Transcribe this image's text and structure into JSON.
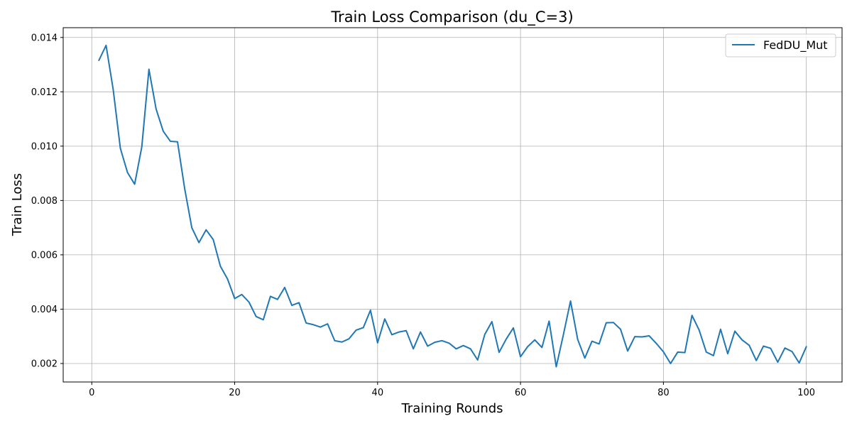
{
  "chart_data": {
    "type": "line",
    "title": "Train Loss Comparison (du_C=3)",
    "xlabel": "Training Rounds",
    "ylabel": "Train Loss",
    "xlim": [
      -4,
      105
    ],
    "ylim": [
      0.00132,
      0.01436
    ],
    "xticks": [
      0,
      20,
      40,
      60,
      80,
      100
    ],
    "xtick_labels": [
      "0",
      "20",
      "40",
      "60",
      "80",
      "100"
    ],
    "yticks": [
      0.002,
      0.004,
      0.006,
      0.008,
      0.01,
      0.012,
      0.014
    ],
    "ytick_labels": [
      "0.002",
      "0.004",
      "0.006",
      "0.008",
      "0.010",
      "0.012",
      "0.014"
    ],
    "grid": true,
    "legend_position": "top-right",
    "series": [
      {
        "name": "FedDU_Mut",
        "color": "#1f77b4",
        "x": [
          1,
          2,
          3,
          4,
          5,
          6,
          7,
          8,
          9,
          10,
          11,
          12,
          13,
          14,
          15,
          16,
          17,
          18,
          19,
          20,
          21,
          22,
          23,
          24,
          25,
          26,
          27,
          28,
          29,
          30,
          31,
          32,
          33,
          34,
          35,
          36,
          37,
          38,
          39,
          40,
          41,
          42,
          43,
          44,
          45,
          46,
          47,
          48,
          49,
          50,
          51,
          52,
          53,
          54,
          55,
          56,
          57,
          58,
          59,
          60,
          61,
          62,
          63,
          64,
          65,
          66,
          67,
          68,
          69,
          70,
          71,
          72,
          73,
          74,
          75,
          76,
          77,
          78,
          79,
          80,
          81,
          82,
          83,
          84,
          85,
          86,
          87,
          88,
          89,
          90,
          91,
          92,
          93,
          94,
          95,
          96,
          97,
          98,
          99,
          100
        ],
        "values": [
          0.01316,
          0.01371,
          0.01208,
          0.00992,
          0.00903,
          0.0086,
          0.00997,
          0.01283,
          0.01137,
          0.01055,
          0.01018,
          0.01016,
          0.00844,
          0.007,
          0.00645,
          0.00692,
          0.00656,
          0.00558,
          0.00511,
          0.00439,
          0.00454,
          0.00426,
          0.00373,
          0.00361,
          0.00447,
          0.00436,
          0.0048,
          0.00414,
          0.00424,
          0.00349,
          0.00343,
          0.00334,
          0.00346,
          0.00284,
          0.00279,
          0.00291,
          0.00323,
          0.00332,
          0.00396,
          0.00276,
          0.00364,
          0.00306,
          0.00316,
          0.00321,
          0.00254,
          0.00316,
          0.00264,
          0.00278,
          0.00284,
          0.00275,
          0.00254,
          0.00266,
          0.00254,
          0.00213,
          0.00307,
          0.00354,
          0.00241,
          0.0029,
          0.00331,
          0.00225,
          0.00262,
          0.00287,
          0.00259,
          0.00356,
          0.00188,
          0.00306,
          0.0043,
          0.00289,
          0.0022,
          0.00282,
          0.00272,
          0.0035,
          0.00351,
          0.00326,
          0.00246,
          0.00299,
          0.00298,
          0.00302,
          0.00274,
          0.00243,
          0.002,
          0.00242,
          0.0024,
          0.00377,
          0.00323,
          0.00242,
          0.00229,
          0.00326,
          0.00236,
          0.00319,
          0.00287,
          0.00267,
          0.00211,
          0.00264,
          0.00256,
          0.00205,
          0.00257,
          0.00244,
          0.00202,
          0.00262
        ]
      }
    ]
  }
}
